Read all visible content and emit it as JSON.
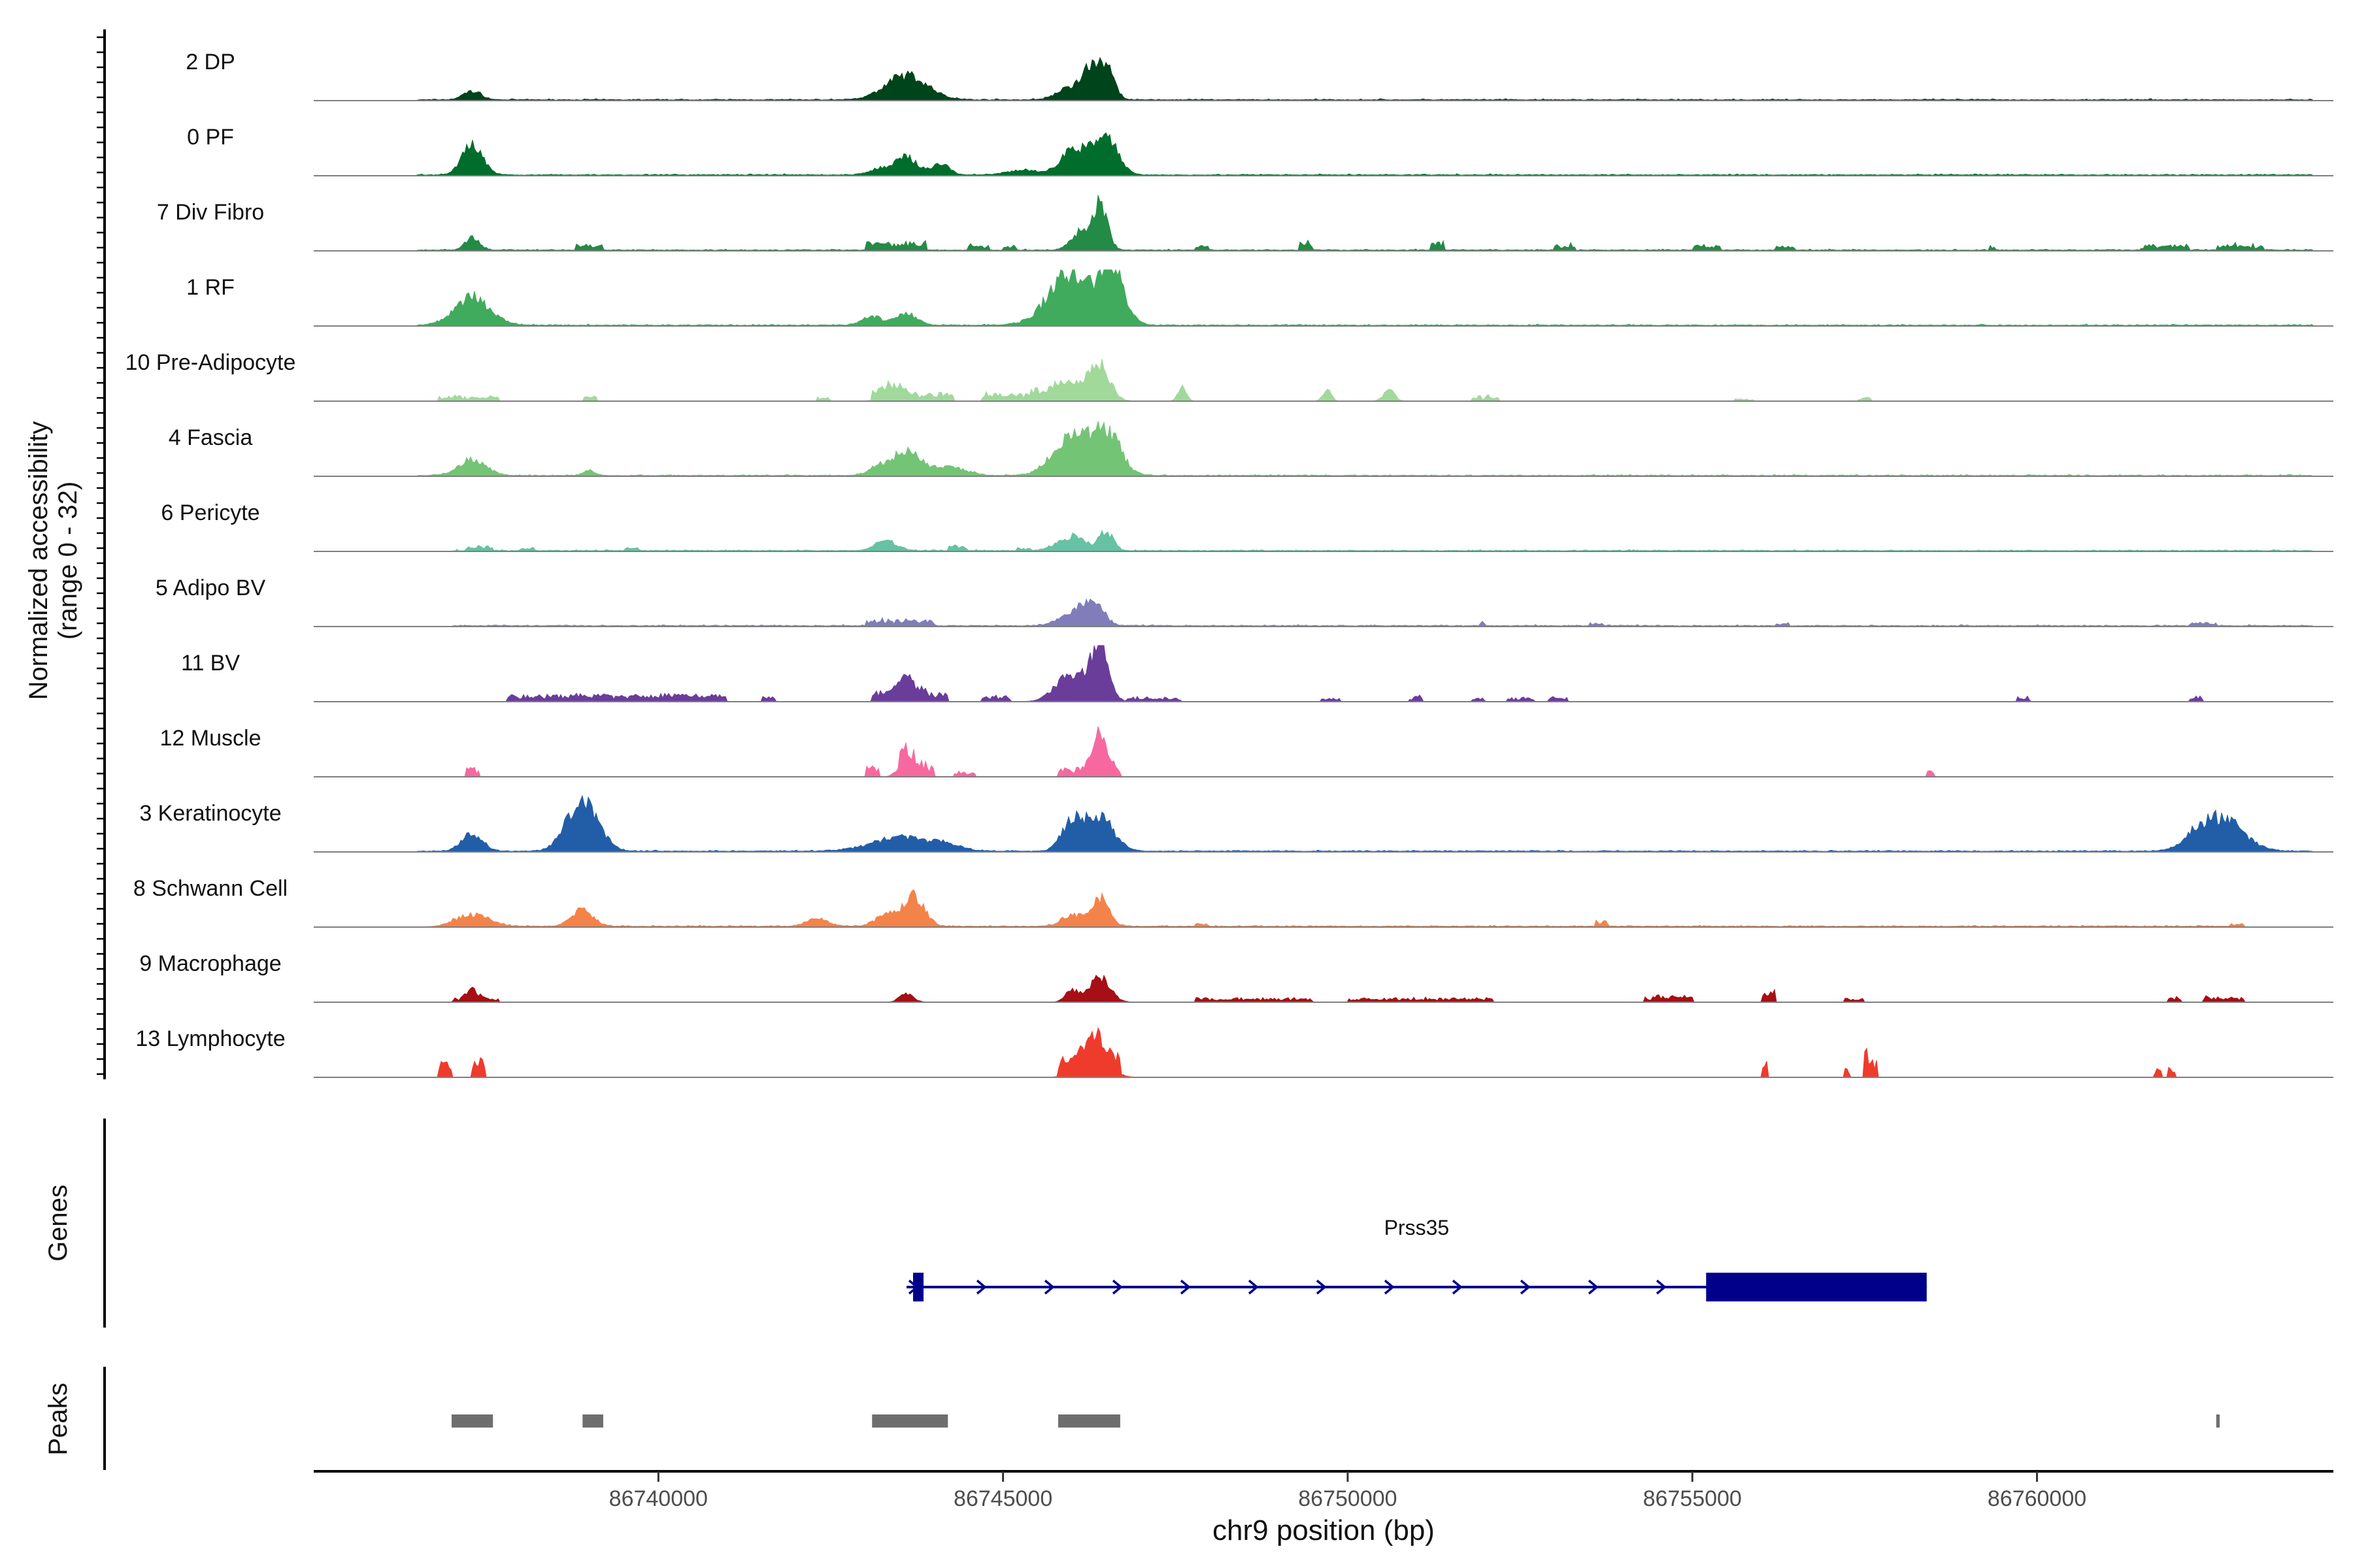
{
  "chart_data": {
    "type": "area",
    "title": "",
    "ylabel": "Normalized accessibility",
    "ylabel_range": "(range 0 - 32)",
    "ylim": [
      0,
      32
    ],
    "xlabel": "chr9 position (bp)",
    "xlim": [
      86735000,
      86764300
    ],
    "x_ticks": [
      86740000,
      86745000,
      86750000,
      86755000,
      86760000
    ],
    "genes_label": "Genes",
    "peaks_label": "Peaks",
    "tracks": [
      {
        "name": "2 DP",
        "color": "#00441b",
        "peaks": [
          [
            86737300,
            130,
            0.15
          ],
          [
            86743600,
            300,
            0.43
          ],
          [
            86746000,
            200,
            0.22
          ],
          [
            86746450,
            130,
            0.7
          ],
          [
            86746200,
            80,
            0.35
          ]
        ],
        "noise": [
          [
            86736500,
            86764000
          ]
        ]
      },
      {
        "name": "0 PF",
        "color": "#006d2c",
        "peaks": [
          [
            86737300,
            150,
            0.52
          ],
          [
            86743200,
            150,
            0.1
          ],
          [
            86743600,
            170,
            0.3
          ],
          [
            86744100,
            120,
            0.2
          ],
          [
            86746050,
            200,
            0.45
          ],
          [
            86746500,
            170,
            0.62
          ],
          [
            86745300,
            250,
            0.08
          ]
        ],
        "noise": [
          [
            86736500,
            86764000
          ]
        ]
      },
      {
        "name": "7 Div Fibro",
        "color": "#238b45",
        "peaks": [
          [
            86737300,
            100,
            0.22
          ],
          [
            86746400,
            110,
            0.8
          ],
          [
            86746100,
            130,
            0.3
          ]
        ],
        "noise": [
          [
            86736500,
            86764000
          ]
        ],
        "islands": [
          [
            86738800,
            86739200,
            0.12
          ],
          [
            86743000,
            86743900,
            0.15
          ],
          [
            86744500,
            86744800,
            0.1
          ],
          [
            86745000,
            86745200,
            0.1
          ],
          [
            86747800,
            86748000,
            0.1
          ],
          [
            86749300,
            86749500,
            0.15
          ],
          [
            86751200,
            86751400,
            0.18
          ],
          [
            86753000,
            86753300,
            0.1
          ],
          [
            86755000,
            86755400,
            0.1
          ],
          [
            86756200,
            86756500,
            0.1
          ],
          [
            86759300,
            86759400,
            0.1
          ],
          [
            86761500,
            86762200,
            0.1
          ],
          [
            86762600,
            86763300,
            0.1
          ]
        ]
      },
      {
        "name": "1 RF",
        "color": "#41ab5d",
        "peaks": [
          [
            86737300,
            250,
            0.5
          ],
          [
            86743100,
            150,
            0.15
          ],
          [
            86743600,
            150,
            0.2
          ],
          [
            86746000,
            320,
            0.95
          ],
          [
            86746600,
            170,
            0.85
          ]
        ],
        "noise": [
          [
            86736500,
            86764000
          ]
        ]
      },
      {
        "name": "10 Pre-Adipocyte",
        "color": "#a1d99b",
        "peaks": [
          [
            86746400,
            150,
            0.6
          ],
          [
            86745900,
            250,
            0.35
          ],
          [
            86743400,
            150,
            0.2
          ],
          [
            86750600,
            80,
            0.2
          ],
          [
            86749700,
            60,
            0.2
          ],
          [
            86747600,
            60,
            0.25
          ]
        ],
        "islands": [
          [
            86736800,
            86737700,
            0.1
          ],
          [
            86738900,
            86739100,
            0.1
          ],
          [
            86742300,
            86742500,
            0.07
          ],
          [
            86743100,
            86744300,
            0.15
          ],
          [
            86744700,
            86745500,
            0.15
          ],
          [
            86751800,
            86752200,
            0.1
          ],
          [
            86755600,
            86755900,
            0.05
          ],
          [
            86757400,
            86757600,
            0.08
          ]
        ]
      },
      {
        "name": "4 Fascia",
        "color": "#74c476",
        "peaks": [
          [
            86737300,
            200,
            0.28
          ],
          [
            86739000,
            80,
            0.1
          ],
          [
            86743600,
            180,
            0.45
          ],
          [
            86743200,
            150,
            0.15
          ],
          [
            86744200,
            250,
            0.15
          ],
          [
            86746000,
            270,
            0.65
          ],
          [
            86746500,
            200,
            0.75
          ]
        ],
        "noise": [
          [
            86736500,
            86764000
          ]
        ]
      },
      {
        "name": "6 Pericyte",
        "color": "#66c2a4",
        "peaks": [
          [
            86743300,
            150,
            0.18
          ],
          [
            86746500,
            100,
            0.32
          ],
          [
            86746000,
            200,
            0.25
          ]
        ],
        "noise": [
          [
            86737000,
            86764000
          ]
        ],
        "islands": [
          [
            86737200,
            86737600,
            0.08
          ],
          [
            86738000,
            86738200,
            0.05
          ],
          [
            86739500,
            86739700,
            0.05
          ],
          [
            86744200,
            86744500,
            0.1
          ],
          [
            86745200,
            86745400,
            0.05
          ]
        ]
      },
      {
        "name": "5 Adipo BV",
        "color": "#807dba",
        "peaks": [
          [
            86746300,
            150,
            0.4
          ],
          [
            86746000,
            200,
            0.2
          ]
        ],
        "noise": [
          [
            86737000,
            86764000
          ]
        ],
        "islands": [
          [
            86743000,
            86744000,
            0.12
          ],
          [
            86751900,
            86752000,
            0.08
          ],
          [
            86753500,
            86753700,
            0.05
          ],
          [
            86756200,
            86756400,
            0.05
          ],
          [
            86762200,
            86762600,
            0.05
          ]
        ]
      },
      {
        "name": "11 BV",
        "color": "#6a3d9a",
        "peaks": [
          [
            86746400,
            130,
            0.9
          ],
          [
            86746000,
            220,
            0.5
          ],
          [
            86743600,
            130,
            0.35
          ]
        ],
        "islands": [
          [
            86737800,
            86741000,
            0.15
          ],
          [
            86741500,
            86741700,
            0.1
          ],
          [
            86743100,
            86744200,
            0.18
          ],
          [
            86744700,
            86745100,
            0.1
          ],
          [
            86746800,
            86747600,
            0.08
          ],
          [
            86749600,
            86749900,
            0.08
          ],
          [
            86750900,
            86751100,
            0.1
          ],
          [
            86751800,
            86752000,
            0.08
          ],
          [
            86752300,
            86752700,
            0.08
          ],
          [
            86752900,
            86753200,
            0.08
          ],
          [
            86759700,
            86759900,
            0.1
          ],
          [
            86762200,
            86762400,
            0.12
          ]
        ]
      },
      {
        "name": "12 Muscle",
        "color": "#f768a1",
        "peaks": [
          [
            86746400,
            110,
            0.65
          ],
          [
            86743600,
            110,
            0.3
          ]
        ],
        "islands": [
          [
            86737200,
            86737400,
            0.2
          ],
          [
            86743000,
            86743200,
            0.2
          ],
          [
            86743500,
            86744000,
            0.25
          ],
          [
            86744300,
            86744600,
            0.1
          ],
          [
            86745800,
            86746700,
            0.15
          ],
          [
            86758400,
            86758500,
            0.15
          ]
        ]
      },
      {
        "name": "3 Keratinocyte",
        "color": "#225ea8",
        "peaks": [
          [
            86737300,
            150,
            0.3
          ],
          [
            86738900,
            220,
            0.95
          ],
          [
            86743500,
            400,
            0.25
          ],
          [
            86744200,
            200,
            0.1
          ],
          [
            86746400,
            200,
            0.6
          ],
          [
            86746000,
            150,
            0.5
          ],
          [
            86762700,
            300,
            0.55
          ],
          [
            86762300,
            200,
            0.2
          ]
        ],
        "noise": [
          [
            86736500,
            86764000
          ]
        ]
      },
      {
        "name": "8 Schwann Cell",
        "color": "#f4834a",
        "peaks": [
          [
            86737300,
            250,
            0.2
          ],
          [
            86738900,
            150,
            0.3
          ],
          [
            86743700,
            150,
            0.55
          ],
          [
            86743300,
            150,
            0.2
          ],
          [
            86742300,
            150,
            0.15
          ],
          [
            86746400,
            130,
            0.5
          ],
          [
            86746000,
            150,
            0.2
          ]
        ],
        "noise": [
          [
            86737000,
            86763000
          ]
        ],
        "islands": [
          [
            86747800,
            86748000,
            0.05
          ],
          [
            86753600,
            86753800,
            0.1
          ],
          [
            86762800,
            86763000,
            0.05
          ]
        ]
      },
      {
        "name": "9 Macrophage",
        "color": "#a50f15",
        "peaks": [
          [
            86746400,
            150,
            0.45
          ],
          [
            86746000,
            100,
            0.2
          ],
          [
            86737300,
            80,
            0.2
          ],
          [
            86743600,
            100,
            0.15
          ]
        ],
        "islands": [
          [
            86737000,
            86737700,
            0.08
          ],
          [
            86747800,
            86749500,
            0.08
          ],
          [
            86750000,
            86752100,
            0.08
          ],
          [
            86754300,
            86755000,
            0.12
          ],
          [
            86756000,
            86756200,
            0.2
          ],
          [
            86757200,
            86757500,
            0.08
          ],
          [
            86761900,
            86762100,
            0.1
          ],
          [
            86762400,
            86763000,
            0.1
          ]
        ]
      },
      {
        "name": "13 Lymphocyte",
        "color": "#ef3b2c",
        "peaks": [
          [
            86746300,
            200,
            0.5
          ]
        ],
        "islands": [
          [
            86736800,
            86737000,
            0.3
          ],
          [
            86737300,
            86737500,
            0.35
          ],
          [
            86745800,
            86746700,
            0.3
          ],
          [
            86756000,
            86756100,
            0.35
          ],
          [
            86757200,
            86757300,
            0.2
          ],
          [
            86757500,
            86757700,
            0.5
          ],
          [
            86761700,
            86761800,
            0.2
          ],
          [
            86761900,
            86762000,
            0.2
          ]
        ]
      }
    ],
    "gene": {
      "name": "Prss35",
      "strand": "+",
      "start": 86743600,
      "end": 86758400,
      "exons": [
        [
          86743600,
          86743750
        ],
        [
          86755200,
          86758400
        ]
      ]
    },
    "peak_regions": [
      [
        86737000,
        86737600
      ],
      [
        86738900,
        86739200
      ],
      [
        86743100,
        86744200
      ],
      [
        86745800,
        86746700
      ],
      [
        86762600,
        86762650
      ]
    ]
  }
}
